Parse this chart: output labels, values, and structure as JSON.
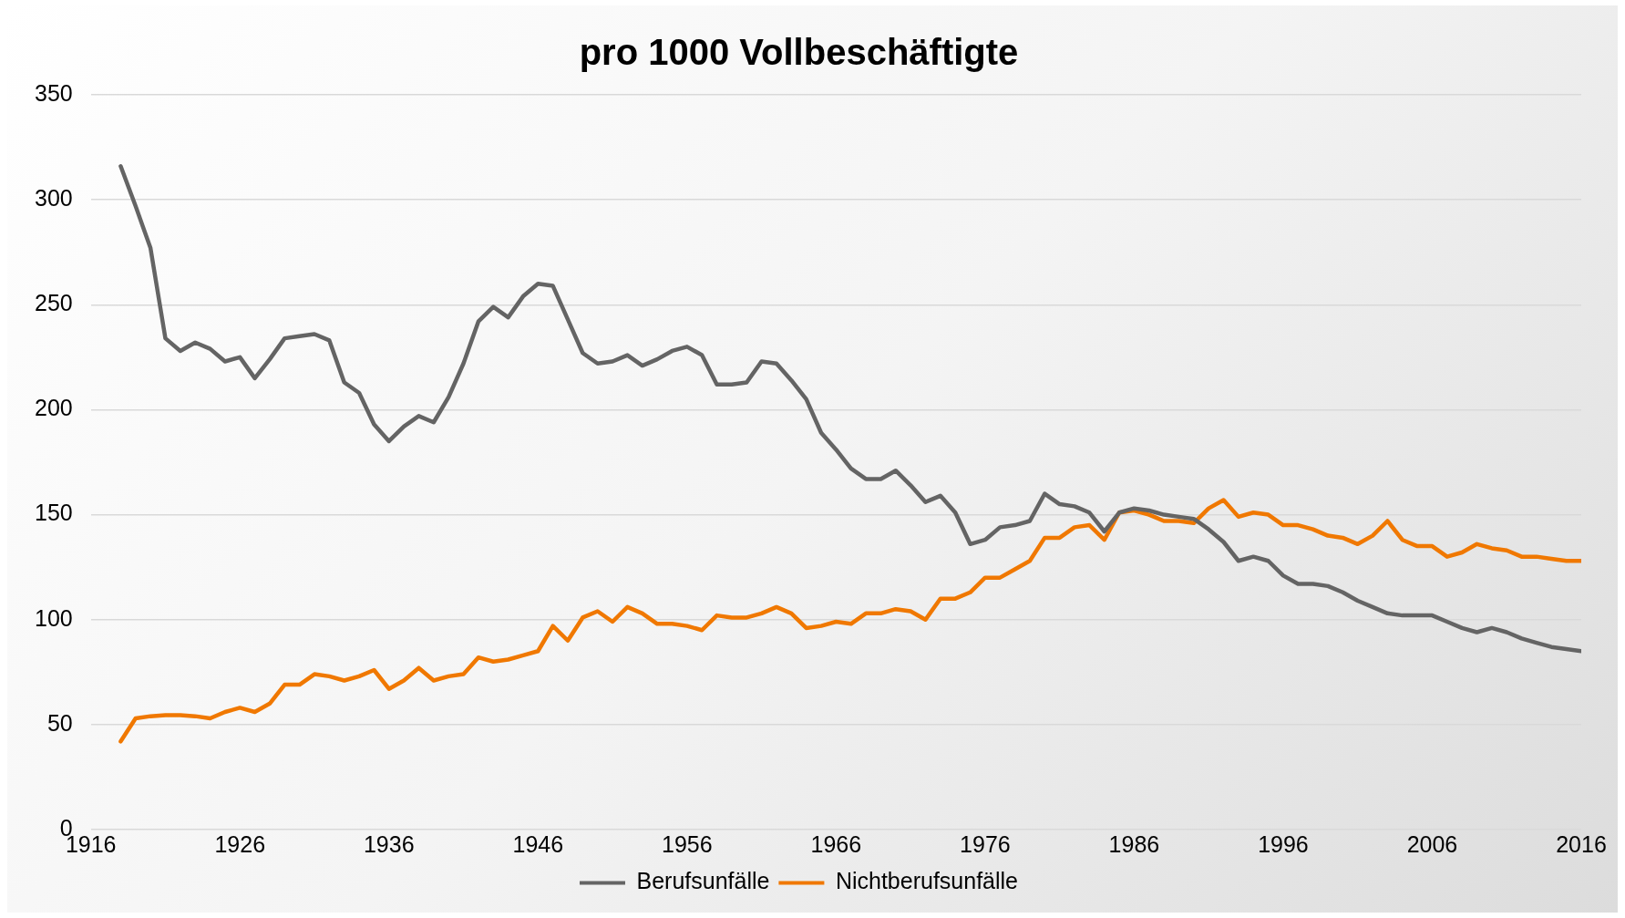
{
  "chart_data": {
    "type": "line",
    "title": "pro 1000 Vollbeschäftigte",
    "x": [
      1918,
      1919,
      1920,
      1921,
      1922,
      1923,
      1924,
      1925,
      1926,
      1927,
      1928,
      1929,
      1930,
      1931,
      1932,
      1933,
      1934,
      1935,
      1936,
      1937,
      1938,
      1939,
      1940,
      1941,
      1942,
      1943,
      1944,
      1945,
      1946,
      1947,
      1948,
      1949,
      1950,
      1951,
      1952,
      1953,
      1954,
      1955,
      1956,
      1957,
      1958,
      1959,
      1960,
      1961,
      1962,
      1963,
      1964,
      1965,
      1966,
      1967,
      1968,
      1969,
      1970,
      1971,
      1972,
      1973,
      1974,
      1975,
      1976,
      1977,
      1978,
      1979,
      1980,
      1981,
      1982,
      1983,
      1984,
      1985,
      1986,
      1987,
      1988,
      1989,
      1990,
      1991,
      1992,
      1993,
      1994,
      1995,
      1996,
      1997,
      1998,
      1999,
      2000,
      2001,
      2002,
      2003,
      2004,
      2005,
      2006,
      2007,
      2008,
      2009,
      2010,
      2011,
      2012,
      2013,
      2014,
      2015,
      2016
    ],
    "series": [
      {
        "name": "Berufsunfälle",
        "color": "#646464",
        "values": [
          316,
          297,
          277,
          234,
          228,
          232,
          229,
          223,
          225,
          215,
          224,
          234,
          235,
          236,
          233,
          213,
          208,
          193,
          185,
          192,
          197,
          194,
          206,
          222,
          242,
          249,
          244,
          254,
          260,
          259,
          243,
          227,
          222,
          223,
          226,
          221,
          224,
          228,
          230,
          226,
          212,
          212,
          213,
          223,
          222,
          214,
          205,
          189,
          181,
          172,
          167,
          167,
          171,
          164,
          156,
          159,
          151,
          136,
          138,
          144,
          145,
          147,
          160,
          155,
          154,
          151,
          142,
          151,
          153,
          152,
          150,
          149,
          148,
          143,
          137,
          128,
          130,
          128,
          121,
          117,
          117,
          116,
          113,
          109,
          106,
          103,
          102,
          102,
          102,
          99,
          96,
          94,
          96,
          94,
          91,
          89,
          87,
          86,
          85
        ]
      },
      {
        "name": "Nichtberufsunfälle",
        "color": "#f07800",
        "values": [
          42,
          53,
          54,
          54.5,
          54.5,
          54,
          53,
          56,
          58,
          56,
          60,
          69,
          69,
          74,
          73,
          71,
          73,
          76,
          67,
          71,
          77,
          71,
          73,
          74,
          82,
          80,
          81,
          83,
          85,
          97,
          90,
          101,
          104,
          99,
          106,
          103,
          98,
          98,
          97,
          95,
          102,
          101,
          101,
          103,
          106,
          103,
          96,
          97,
          99,
          98,
          103,
          103,
          105,
          104,
          100,
          110,
          110,
          113,
          120,
          120,
          124,
          128,
          139,
          139,
          144,
          145,
          138,
          151,
          152,
          150,
          147,
          147,
          146,
          153,
          157,
          149,
          151,
          150,
          145,
          145,
          143,
          140,
          139,
          136,
          140,
          147,
          138,
          135,
          135,
          130,
          132,
          136,
          134,
          133,
          130,
          130,
          129,
          128,
          128
        ]
      }
    ],
    "xlim": [
      1916,
      2016
    ],
    "xticks": [
      1916,
      1926,
      1936,
      1946,
      1956,
      1966,
      1976,
      1986,
      1996,
      2006,
      2016
    ],
    "ylim": [
      0,
      350
    ],
    "yticks": [
      0,
      50,
      100,
      150,
      200,
      250,
      300,
      350
    ],
    "grid": "y",
    "legend": "bottom",
    "marker": "none",
    "line_style": "solid"
  }
}
